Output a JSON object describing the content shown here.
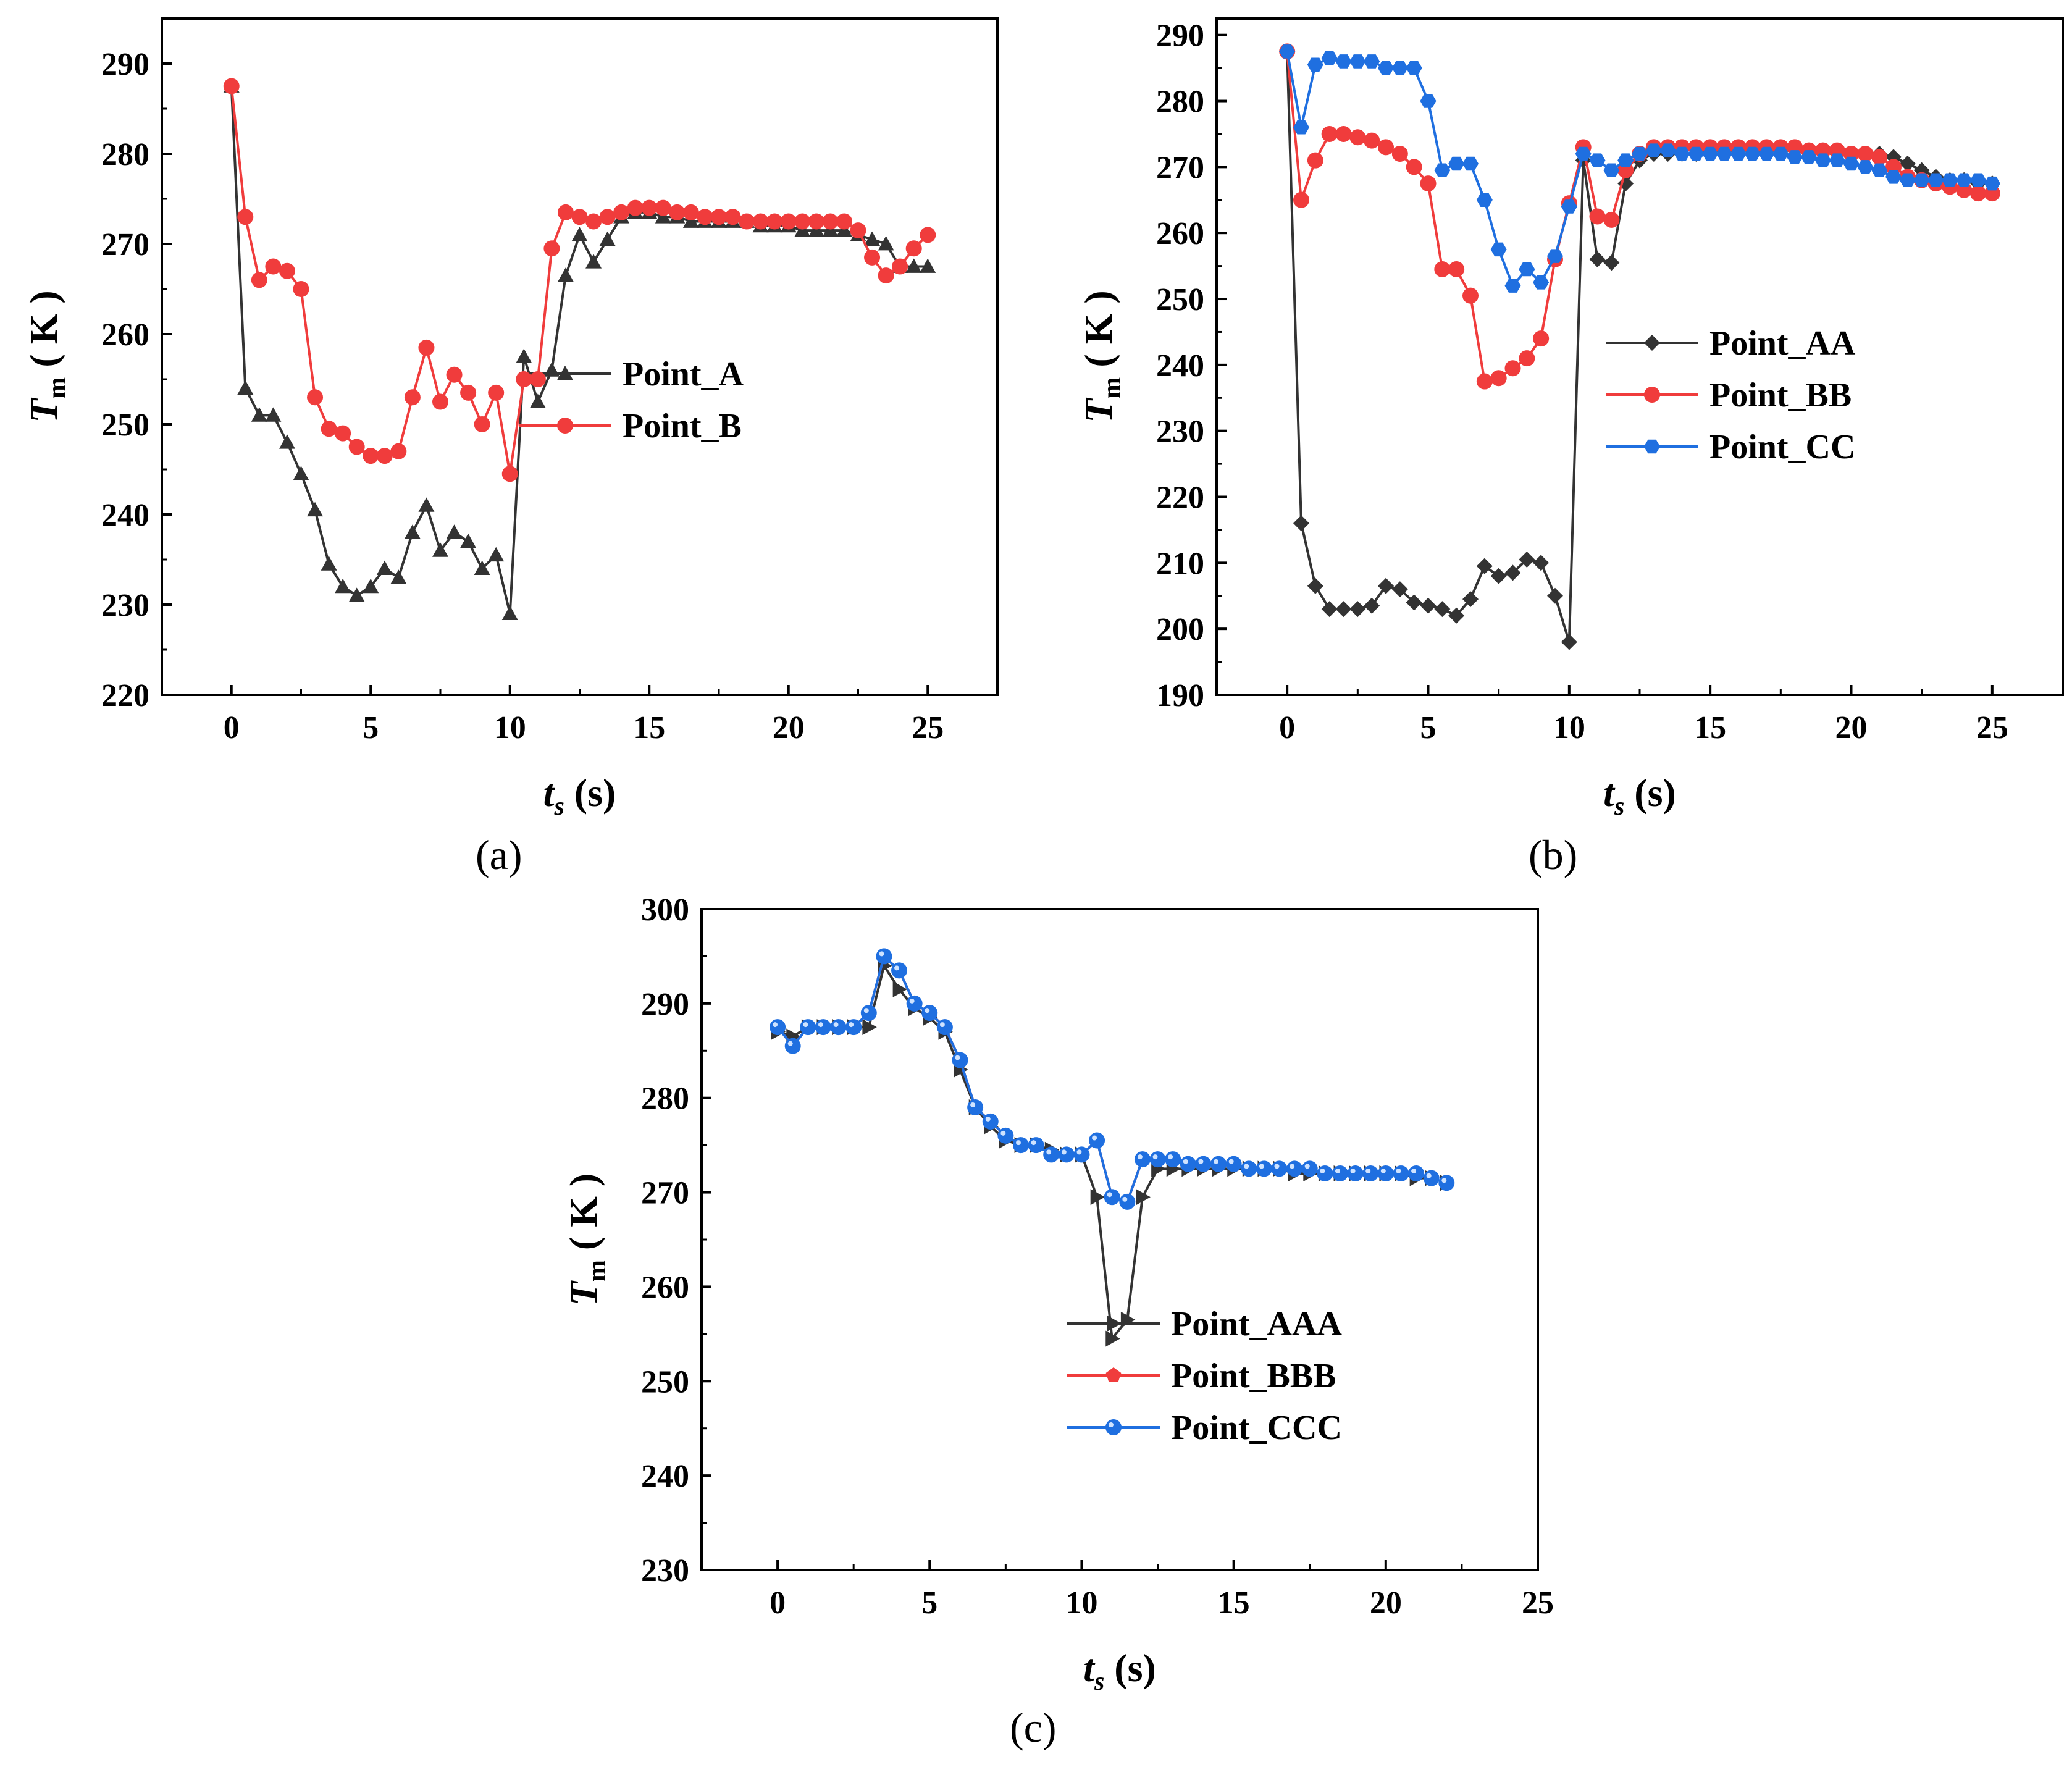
{
  "figure_labels": [
    "(a)",
    "(b)",
    "(c)"
  ],
  "chart_data": [
    {
      "panel": "(a)",
      "type": "line",
      "xlabel_main": "t",
      "xlabel_sub": "s",
      "xlabel_unit": "(s)",
      "ylabel_main": "T",
      "ylabel_sub": "m",
      "ylabel_unit": "( K )",
      "xlim": [
        -2.5,
        27.5
      ],
      "ylim": [
        220,
        295
      ],
      "xticks": [
        0,
        5,
        10,
        15,
        20,
        25
      ],
      "yticks": [
        220,
        230,
        240,
        250,
        260,
        270,
        280,
        290
      ],
      "series": [
        {
          "name": "Point_A",
          "color": "#333333",
          "marker": "triangle-up",
          "x": [
            0,
            0.5,
            1,
            1.5,
            2,
            2.5,
            3,
            3.5,
            4,
            4.5,
            5,
            5.5,
            6,
            6.5,
            7,
            7.5,
            8,
            8.5,
            9,
            9.5,
            10,
            10.5,
            11,
            11.5,
            12,
            12.5,
            13,
            13.5,
            14,
            14.5,
            15,
            15.5,
            16,
            16.5,
            17,
            17.5,
            18,
            18.5,
            19,
            19.5,
            20,
            20.5,
            21,
            21.5,
            22,
            22.5,
            23,
            23.5,
            24,
            24.5,
            25
          ],
          "y": [
            287.5,
            254,
            251,
            251,
            248,
            244.5,
            240.5,
            234.5,
            232,
            231,
            232,
            234,
            233,
            238,
            241,
            236,
            238,
            237,
            234,
            235.5,
            229,
            257.5,
            252.5,
            256,
            266.5,
            271,
            268,
            270.5,
            273,
            273.5,
            273.5,
            273,
            273,
            272.5,
            272.5,
            272.5,
            272.5,
            272.5,
            272,
            272,
            272,
            271.5,
            271.5,
            271.5,
            271.5,
            271,
            270.5,
            270,
            267.5,
            267.5,
            267.5
          ]
        },
        {
          "name": "Point_B",
          "color": "#f03c3c",
          "marker": "circle",
          "x": [
            0,
            0.5,
            1,
            1.5,
            2,
            2.5,
            3,
            3.5,
            4,
            4.5,
            5,
            5.5,
            6,
            6.5,
            7,
            7.5,
            8,
            8.5,
            9,
            9.5,
            10,
            10.5,
            11,
            11.5,
            12,
            12.5,
            13,
            13.5,
            14,
            14.5,
            15,
            15.5,
            16,
            16.5,
            17,
            17.5,
            18,
            18.5,
            19,
            19.5,
            20,
            20.5,
            21,
            21.5,
            22,
            22.5,
            23,
            23.5,
            24,
            24.5,
            25
          ],
          "y": [
            287.5,
            273,
            266,
            267.5,
            267,
            265,
            253,
            249.5,
            249,
            247.5,
            246.5,
            246.5,
            247,
            253,
            258.5,
            252.5,
            255.5,
            253.5,
            250,
            253.5,
            244.5,
            255,
            255,
            269.5,
            273.5,
            273,
            272.5,
            273,
            273.5,
            274,
            274,
            274,
            273.5,
            273.5,
            273,
            273,
            273,
            272.5,
            272.5,
            272.5,
            272.5,
            272.5,
            272.5,
            272.5,
            272.5,
            271.5,
            268.5,
            266.5,
            267.5,
            269.5,
            271
          ]
        }
      ]
    },
    {
      "panel": "(b)",
      "type": "line",
      "xlabel_main": "t",
      "xlabel_sub": "s",
      "xlabel_unit": "(s)",
      "ylabel_main": "T",
      "ylabel_sub": "m",
      "ylabel_unit": "( K )",
      "xlim": [
        -2.5,
        27.5
      ],
      "ylim": [
        190,
        292.5
      ],
      "xticks": [
        0,
        5,
        10,
        15,
        20,
        25
      ],
      "yticks": [
        190,
        200,
        210,
        220,
        230,
        240,
        250,
        260,
        270,
        280,
        290
      ],
      "series": [
        {
          "name": "Point_AA",
          "color": "#333333",
          "marker": "diamond",
          "x": [
            0,
            0.5,
            1,
            1.5,
            2,
            2.5,
            3,
            3.5,
            4,
            4.5,
            5,
            5.5,
            6,
            6.5,
            7,
            7.5,
            8,
            8.5,
            9,
            9.5,
            10,
            10.5,
            11,
            11.5,
            12,
            12.5,
            13,
            13.5,
            14,
            14.5,
            15,
            15.5,
            16,
            16.5,
            17,
            17.5,
            18,
            18.5,
            19,
            19.5,
            20,
            20.5,
            21,
            21.5,
            22,
            22.5,
            23,
            23.5,
            24,
            24.5,
            25
          ],
          "y": [
            287.5,
            216,
            206.5,
            203,
            203,
            203,
            203.5,
            206.5,
            206,
            204,
            203.5,
            203,
            202,
            204.5,
            209.5,
            208,
            208.5,
            210.5,
            210,
            205,
            198,
            271,
            256,
            255.5,
            267.5,
            271,
            272,
            272,
            272,
            272,
            272.5,
            272.5,
            272.5,
            272.5,
            272.5,
            272.5,
            272.5,
            272.5,
            272.5,
            272,
            272,
            272,
            272,
            271.5,
            270.5,
            269.5,
            268.5,
            268,
            268,
            267.5,
            267.5
          ]
        },
        {
          "name": "Point_BB",
          "color": "#f03c3c",
          "marker": "circle",
          "x": [
            0,
            0.5,
            1,
            1.5,
            2,
            2.5,
            3,
            3.5,
            4,
            4.5,
            5,
            5.5,
            6,
            6.5,
            7,
            7.5,
            8,
            8.5,
            9,
            9.5,
            10,
            10.5,
            11,
            11.5,
            12,
            12.5,
            13,
            13.5,
            14,
            14.5,
            15,
            15.5,
            16,
            16.5,
            17,
            17.5,
            18,
            18.5,
            19,
            19.5,
            20,
            20.5,
            21,
            21.5,
            22,
            22.5,
            23,
            23.5,
            24,
            24.5,
            25
          ],
          "y": [
            287.5,
            265,
            271,
            275,
            275,
            274.5,
            274,
            273,
            272,
            270,
            267.5,
            254.5,
            254.5,
            250.5,
            237.5,
            238,
            239.5,
            241,
            244,
            256,
            264.5,
            273,
            262.5,
            262,
            269.5,
            272,
            273,
            273,
            273,
            273,
            273,
            273,
            273,
            273,
            273,
            273,
            273,
            272.5,
            272.5,
            272.5,
            272,
            272,
            271.5,
            270,
            268.5,
            268,
            267.5,
            267,
            266.5,
            266,
            266
          ]
        },
        {
          "name": "Point_CC",
          "color": "#1f6fe0",
          "marker": "hexagon",
          "x": [
            0,
            0.5,
            1,
            1.5,
            2,
            2.5,
            3,
            3.5,
            4,
            4.5,
            5,
            5.5,
            6,
            6.5,
            7,
            7.5,
            8,
            8.5,
            9,
            9.5,
            10,
            10.5,
            11,
            11.5,
            12,
            12.5,
            13,
            13.5,
            14,
            14.5,
            15,
            15.5,
            16,
            16.5,
            17,
            17.5,
            18,
            18.5,
            19,
            19.5,
            20,
            20.5,
            21,
            21.5,
            22,
            22.5,
            23,
            23.5,
            24,
            24.5,
            25
          ],
          "y": [
            287.5,
            276,
            285.5,
            286.5,
            286,
            286,
            286,
            285,
            285,
            285,
            280,
            269.5,
            270.5,
            270.5,
            265,
            257.5,
            252,
            254.5,
            252.5,
            256.5,
            264,
            272,
            271,
            269.5,
            271,
            272,
            272.5,
            272.5,
            272,
            272,
            272,
            272,
            272,
            272,
            272,
            272,
            271.5,
            271.5,
            271,
            271,
            270.5,
            270,
            269.5,
            268.5,
            268,
            268,
            268,
            268,
            268,
            268,
            267.5
          ]
        }
      ]
    },
    {
      "panel": "(c)",
      "type": "line",
      "xlabel_main": "t",
      "xlabel_sub": "s",
      "xlabel_unit": "(s)",
      "ylabel_main": "T",
      "ylabel_sub": "m",
      "ylabel_unit": "( K )",
      "xlim": [
        -2.5,
        25
      ],
      "ylim": [
        230,
        300
      ],
      "xticks": [
        0,
        5,
        10,
        15,
        20,
        25
      ],
      "yticks": [
        230,
        240,
        250,
        260,
        270,
        280,
        290,
        300
      ],
      "series": [
        {
          "name": "Point_AAA",
          "color": "#333333",
          "marker": "triangle-right",
          "x": [
            0,
            0.5,
            1,
            1.5,
            2,
            2.5,
            3,
            3.5,
            4,
            4.5,
            5,
            5.5,
            6,
            6.5,
            7,
            7.5,
            8,
            8.5,
            9,
            9.5,
            10,
            10.5,
            11,
            11.5,
            12,
            12.5,
            13,
            13.5,
            14,
            14.5,
            15,
            15.5,
            16,
            16.5,
            17,
            17.5,
            18,
            18.5,
            19,
            19.5,
            20,
            20.5,
            21,
            21.5,
            22
          ],
          "y": [
            287,
            286.5,
            287.5,
            287.5,
            287.5,
            287.5,
            287.5,
            294,
            291.5,
            289.5,
            288.5,
            287,
            283,
            279,
            277,
            275.5,
            275,
            275,
            274.5,
            274,
            274,
            269.5,
            254.5,
            256.5,
            269.5,
            272.5,
            272.5,
            272.5,
            272.5,
            272.5,
            272.5,
            272.5,
            272.5,
            272.5,
            272,
            272,
            272,
            272,
            272,
            272,
            272,
            272,
            271.5,
            271.5,
            271
          ]
        },
        {
          "name": "Point_BBB",
          "color": "#f03c3c",
          "marker": "pentagon",
          "x": [
            0,
            0.5,
            1,
            1.5,
            2,
            2.5,
            3,
            3.5,
            4,
            4.5,
            5,
            5.5,
            6,
            6.5,
            7,
            7.5,
            8,
            8.5,
            9,
            9.5,
            10,
            10.5,
            11,
            11.5,
            12,
            12.5,
            13,
            13.5,
            14,
            14.5,
            15,
            15.5,
            16,
            16.5,
            17,
            17.5,
            18,
            18.5,
            19,
            19.5,
            20,
            20.5,
            21,
            21.5,
            22
          ],
          "y": [
            287.5,
            285.5,
            287.5,
            287.5,
            287.5,
            287.5,
            289,
            295,
            293.5,
            290,
            289,
            287.5,
            284,
            279,
            277.5,
            276,
            275,
            275,
            274,
            274,
            274,
            275.5,
            269.5,
            269,
            273.5,
            273.5,
            273.5,
            273,
            273,
            273,
            273,
            272.5,
            272.5,
            272.5,
            272.5,
            272.5,
            272,
            272,
            272,
            272,
            272,
            272,
            272,
            271.5,
            271
          ]
        },
        {
          "name": "Point_CCC",
          "color": "#1f6fe0",
          "marker": "sphere",
          "x": [
            0,
            0.5,
            1,
            1.5,
            2,
            2.5,
            3,
            3.5,
            4,
            4.5,
            5,
            5.5,
            6,
            6.5,
            7,
            7.5,
            8,
            8.5,
            9,
            9.5,
            10,
            10.5,
            11,
            11.5,
            12,
            12.5,
            13,
            13.5,
            14,
            14.5,
            15,
            15.5,
            16,
            16.5,
            17,
            17.5,
            18,
            18.5,
            19,
            19.5,
            20,
            20.5,
            21,
            21.5,
            22
          ],
          "y": [
            287.5,
            285.5,
            287.5,
            287.5,
            287.5,
            287.5,
            289,
            295,
            293.5,
            290,
            289,
            287.5,
            284,
            279,
            277.5,
            276,
            275,
            275,
            274,
            274,
            274,
            275.5,
            269.5,
            269,
            273.5,
            273.5,
            273.5,
            273,
            273,
            273,
            273,
            272.5,
            272.5,
            272.5,
            272.5,
            272.5,
            272,
            272,
            272,
            272,
            272,
            272,
            272,
            271.5,
            271
          ]
        }
      ]
    }
  ]
}
